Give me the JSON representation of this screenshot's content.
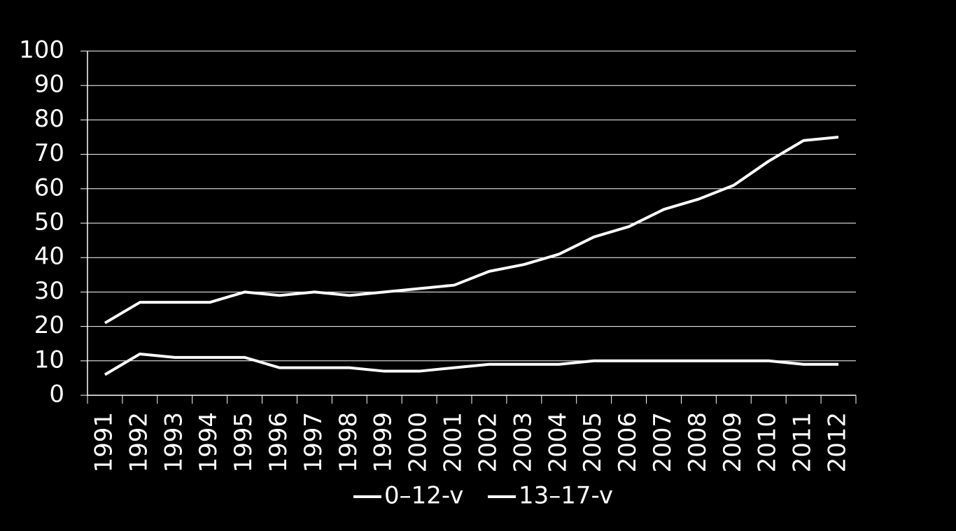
{
  "chart_data": {
    "type": "line",
    "categories": [
      "1991",
      "1992",
      "1993",
      "1994",
      "1995",
      "1996",
      "1997",
      "1998",
      "1999",
      "2000",
      "2001",
      "2002",
      "2003",
      "2004",
      "2005",
      "2006",
      "2007",
      "2008",
      "2009",
      "2010",
      "2011",
      "2012"
    ],
    "series": [
      {
        "name": "0–12-v",
        "color": "#ffffff",
        "values": [
          21,
          27,
          27,
          27,
          30,
          29,
          30,
          29,
          30,
          31,
          32,
          36,
          38,
          41,
          46,
          49,
          54,
          57,
          61,
          68,
          74,
          75
        ]
      },
      {
        "name": "13–17-v",
        "color": "#ffffff",
        "values": [
          6,
          12,
          11,
          11,
          11,
          8,
          8,
          8,
          7,
          7,
          8,
          9,
          9,
          9,
          10,
          10,
          10,
          10,
          10,
          10,
          9,
          9
        ]
      }
    ],
    "ylim": [
      0,
      100
    ],
    "yticks": [
      0,
      10,
      20,
      30,
      40,
      50,
      60,
      70,
      80,
      90,
      100
    ],
    "grid": true,
    "legend": "bottom"
  }
}
